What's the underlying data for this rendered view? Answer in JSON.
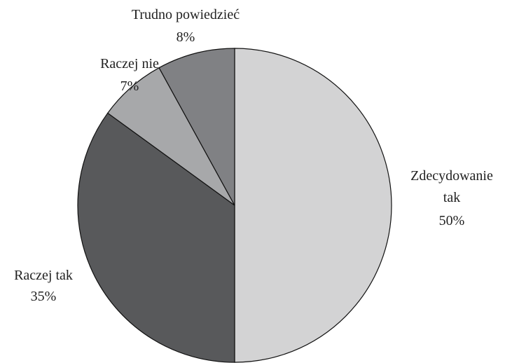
{
  "chart_data": {
    "type": "pie",
    "categories": [
      "Zdecydowanie tak",
      "Raczej tak",
      "Raczej nie",
      "Trudno powiedzieć"
    ],
    "values": [
      50,
      35,
      7,
      8
    ],
    "value_labels": [
      "50%",
      "35%",
      "7%",
      "8%"
    ],
    "colors": [
      "#d3d3d4",
      "#58595b",
      "#a7a8aa",
      "#808184"
    ]
  }
}
